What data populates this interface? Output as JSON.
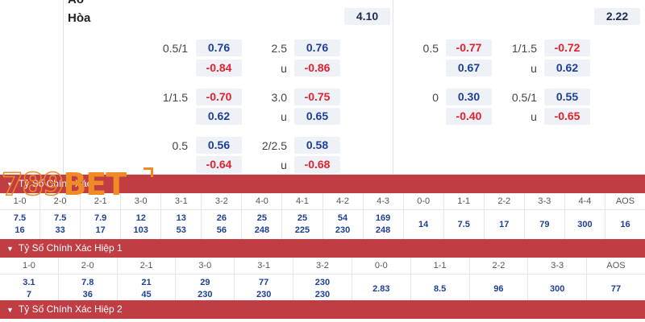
{
  "top": {
    "partial_row_label": "Áo",
    "draw_label": "Hòa",
    "draw_left": "4.10",
    "draw_right": "2.22",
    "rows": [
      {
        "h1": "0.5/1",
        "h1a": "0.76",
        "h1b": "-0.84",
        "o1": "2.5",
        "o1a": "0.76",
        "o1u": "u",
        "o1b": "-0.86",
        "h2": "0.5",
        "h2a": "-0.77",
        "h2b": "0.67",
        "o2": "1/1.5",
        "o2a": "-0.72",
        "o2u": "u",
        "o2b": "0.62"
      },
      {
        "h1": "1/1.5",
        "h1a": "-0.70",
        "h1b": "0.62",
        "o1": "3.0",
        "o1a": "-0.75",
        "o1u": "u",
        "o1b": "0.65",
        "h2": "0",
        "h2a": "0.30",
        "h2b": "-0.40",
        "o2": "0.5/1",
        "o2a": "0.55",
        "o2u": "u",
        "o2b": "-0.65"
      },
      {
        "h1": "0.5",
        "h1a": "0.56",
        "h1b": "-0.64",
        "o1": "2/2.5",
        "o1a": "0.58",
        "o1u": "u",
        "o1b": "-0.68"
      }
    ]
  },
  "logo": {
    "num": "789",
    "bet": "BET"
  },
  "section1": {
    "title": "Tỷ Số Chính Xác",
    "cols": [
      {
        "h": "1-0",
        "a": "7.5",
        "b": "16"
      },
      {
        "h": "2-0",
        "a": "7.5",
        "b": "33"
      },
      {
        "h": "2-1",
        "a": "7.9",
        "b": "17"
      },
      {
        "h": "3-0",
        "a": "12",
        "b": "103"
      },
      {
        "h": "3-1",
        "a": "13",
        "b": "53"
      },
      {
        "h": "3-2",
        "a": "26",
        "b": "56"
      },
      {
        "h": "4-0",
        "a": "25",
        "b": "248"
      },
      {
        "h": "4-1",
        "a": "25",
        "b": "225"
      },
      {
        "h": "4-2",
        "a": "54",
        "b": "230"
      },
      {
        "h": "4-3",
        "a": "169",
        "b": "248"
      },
      {
        "h": "0-0",
        "s": "14"
      },
      {
        "h": "1-1",
        "s": "7.5"
      },
      {
        "h": "2-2",
        "s": "17"
      },
      {
        "h": "3-3",
        "s": "79"
      },
      {
        "h": "4-4",
        "s": "300"
      },
      {
        "h": "AOS",
        "s": "16"
      }
    ]
  },
  "section2": {
    "title": "Tỷ Số Chính Xác Hiệp 1",
    "cols": [
      {
        "h": "1-0",
        "a": "3.1",
        "b": "7"
      },
      {
        "h": "2-0",
        "a": "7.8",
        "b": "36"
      },
      {
        "h": "2-1",
        "a": "21",
        "b": "45"
      },
      {
        "h": "3-0",
        "a": "29",
        "b": "230"
      },
      {
        "h": "3-1",
        "a": "77",
        "b": "230"
      },
      {
        "h": "3-2",
        "a": "230",
        "b": "230"
      },
      {
        "h": "0-0",
        "s": "2.83"
      },
      {
        "h": "1-1",
        "s": "8.5"
      },
      {
        "h": "2-2",
        "s": "96"
      },
      {
        "h": "3-3",
        "s": "300"
      },
      {
        "h": "AOS",
        "s": "77"
      }
    ]
  },
  "section3": {
    "title": "Tỷ Số Chính Xác Hiệp 2"
  },
  "colors": {
    "bar": "#c03d44",
    "positive": "#1d3f95",
    "negative": "#e3222d",
    "logo": "#f08a24"
  },
  "icons": {
    "section_toggle": "chevron-down-icon"
  }
}
